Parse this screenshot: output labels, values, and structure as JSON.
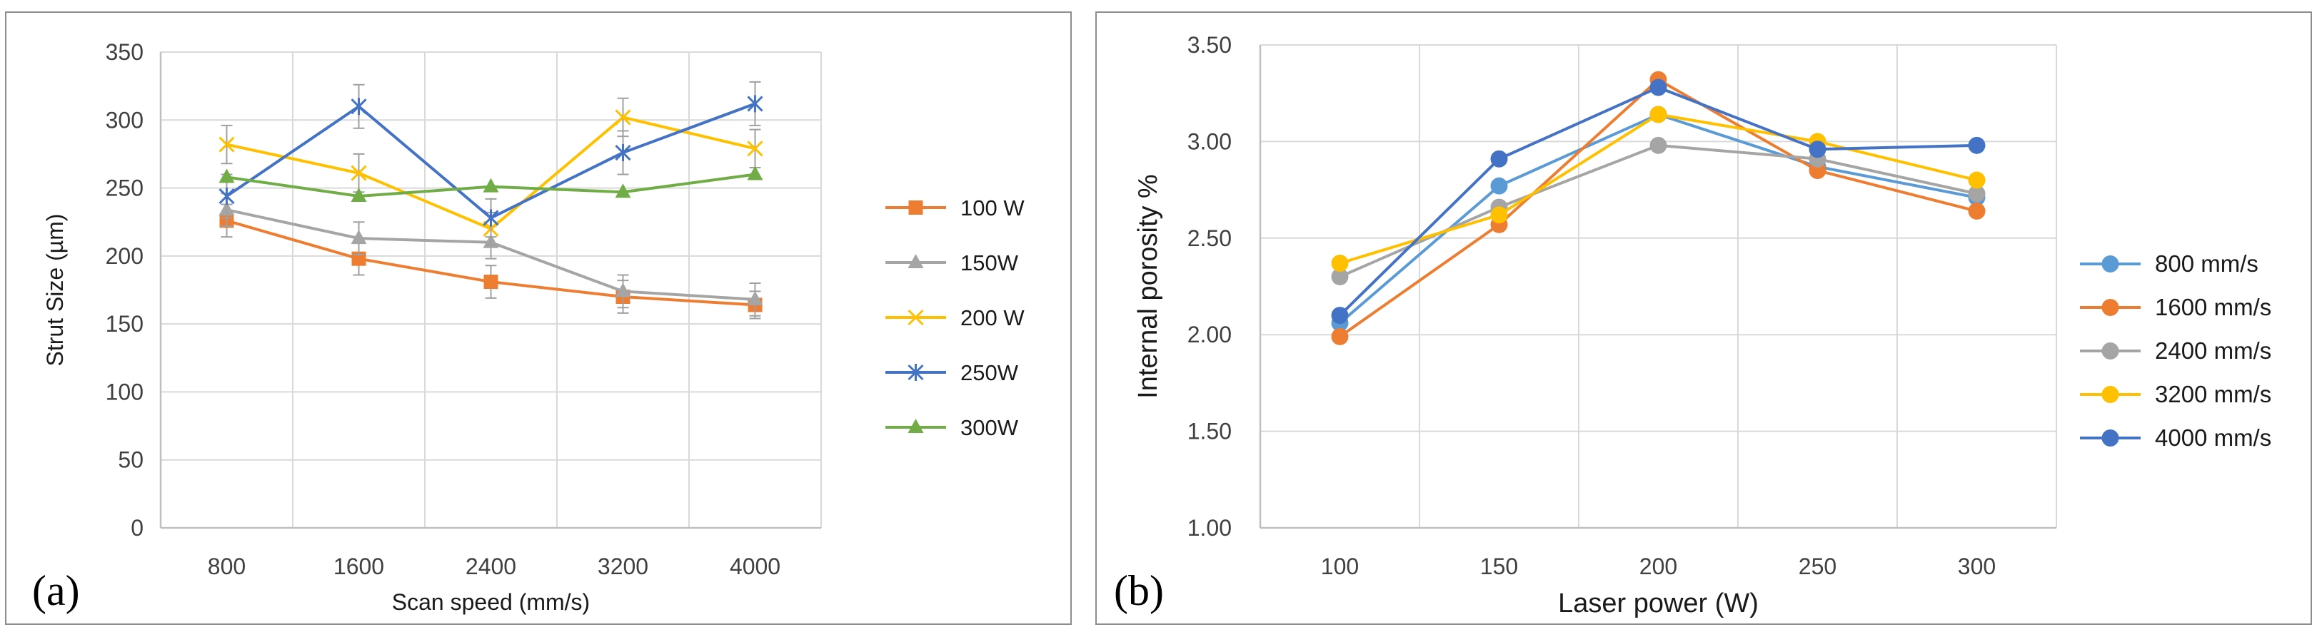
{
  "chart_data": [
    {
      "panel_label": "(a)",
      "type": "line",
      "xlabel": "Scan speed (mm/s)",
      "ylabel": "Strut Size (µm)",
      "categories": [
        "800",
        "1600",
        "2400",
        "3200",
        "4000"
      ],
      "ylim": [
        0,
        350
      ],
      "yticks": [
        "0",
        "50",
        "100",
        "150",
        "200",
        "250",
        "300",
        "350"
      ],
      "legend_position": "right",
      "series": [
        {
          "name": "100 W",
          "color": "#ED7D31",
          "marker": "square",
          "values": [
            226,
            198,
            181,
            170,
            164
          ],
          "errors": [
            12,
            12,
            12,
            12,
            10
          ]
        },
        {
          "name": "150W",
          "color": "#A5A5A5",
          "marker": "triangle",
          "values": [
            234,
            213,
            210,
            174,
            168
          ],
          "errors": [
            12,
            12,
            12,
            12,
            12
          ]
        },
        {
          "name": "200 W",
          "color": "#FFC000",
          "marker": "x",
          "values": [
            282,
            261,
            220,
            302,
            279
          ],
          "errors": [
            14,
            14,
            12,
            14,
            14
          ]
        },
        {
          "name": "250W",
          "color": "#4472C4",
          "marker": "star",
          "values": [
            244,
            310,
            228,
            276,
            312
          ],
          "errors": [
            16,
            16,
            14,
            16,
            16
          ]
        },
        {
          "name": "300W",
          "color": "#70AD47",
          "marker": "triangle",
          "values": [
            258,
            244,
            251,
            247,
            260
          ],
          "errors": [
            0,
            0,
            0,
            0,
            0
          ]
        }
      ]
    },
    {
      "panel_label": "(b)",
      "type": "line",
      "xlabel": "Laser power (W)",
      "ylabel": "Internal porosity %",
      "categories": [
        "100",
        "150",
        "200",
        "250",
        "300"
      ],
      "ylim": [
        1.0,
        3.5
      ],
      "yticks": [
        "1.00",
        "1.50",
        "2.00",
        "2.50",
        "3.00",
        "3.50"
      ],
      "legend_position": "right",
      "series": [
        {
          "name": "800 mm/s",
          "color": "#5B9BD5",
          "marker": "circle",
          "values": [
            2.06,
            2.77,
            3.14,
            2.87,
            2.71
          ]
        },
        {
          "name": "1600 mm/s",
          "color": "#ED7D31",
          "marker": "circle",
          "values": [
            1.99,
            2.57,
            3.32,
            2.85,
            2.64
          ]
        },
        {
          "name": "2400 mm/s",
          "color": "#A5A5A5",
          "marker": "circle",
          "values": [
            2.3,
            2.66,
            2.98,
            2.91,
            2.73
          ]
        },
        {
          "name": "3200 mm/s",
          "color": "#FFC000",
          "marker": "circle",
          "values": [
            2.37,
            2.62,
            3.14,
            3.0,
            2.8
          ]
        },
        {
          "name": "4000 mm/s",
          "color": "#4472C4",
          "marker": "circle",
          "values": [
            2.1,
            2.91,
            3.28,
            2.96,
            2.98
          ]
        }
      ]
    }
  ]
}
